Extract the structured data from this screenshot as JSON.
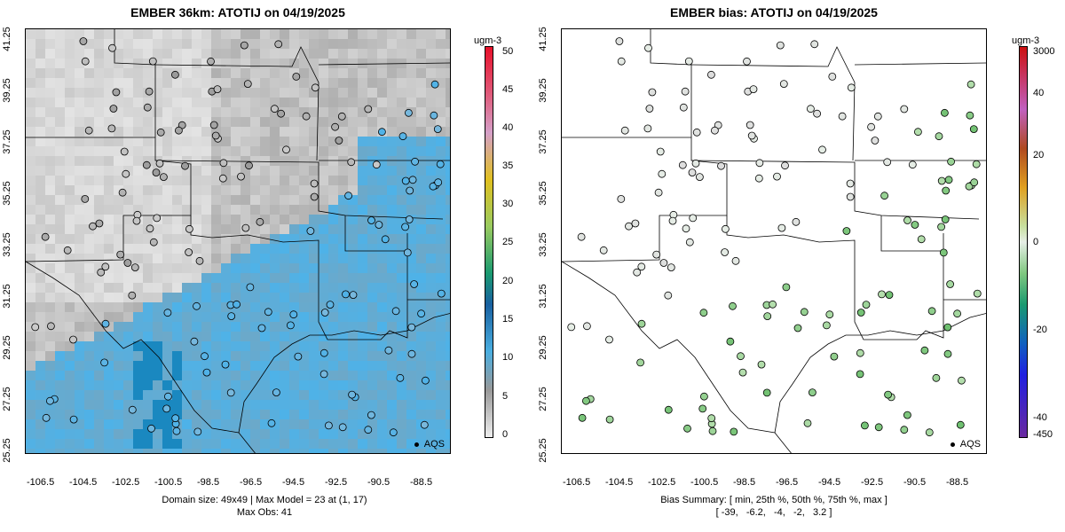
{
  "left": {
    "title": "EMBER 36km: ATOTIJ on 04/19/2025",
    "footer_line1": "Domain size: 49x49 | Max Model = 23 at (1, 17)",
    "footer_line2": "Max Obs: 41",
    "legend": "AQS",
    "colorbar": {
      "unit": "ugm-3",
      "ticks": [
        "50",
        "45",
        "40",
        "35",
        "30",
        "25",
        "20",
        "15",
        "10",
        "5",
        "0"
      ]
    }
  },
  "right": {
    "title": "EMBER bias: ATOTIJ on 04/19/2025",
    "footer_line1": "Bias Summary: [ min, 25th %, 50th %, 75th %, max ]",
    "footer_line2": "[ -39,   -6.2,   -4,   -2,   3.2 ]",
    "legend": "AQS",
    "colorbar": {
      "unit": "ugm-3",
      "ticks": [
        "3000",
        "40",
        "20",
        "0",
        "-20",
        "-40",
        "-450"
      ]
    }
  },
  "axes": {
    "x_ticks": [
      "-106.5",
      "-104.5",
      "-102.5",
      "-100.5",
      "-98.5",
      "-96.5",
      "-94.5",
      "-92.5",
      "-90.5",
      "-88.5"
    ],
    "y_ticks": [
      "41.25",
      "39.25",
      "37.25",
      "35.25",
      "33.25",
      "31.25",
      "29.25",
      "27.25",
      "25.25"
    ]
  },
  "colors": {
    "model_low": "#f0f0f0",
    "model_mid": "#9a9a9a",
    "model_high": "#4eb2e8",
    "obs_high": "#c8563a",
    "bias_low": "#5c2d8c",
    "bias_mid": "#e6eee6",
    "bias_high": "#cc1010"
  }
}
